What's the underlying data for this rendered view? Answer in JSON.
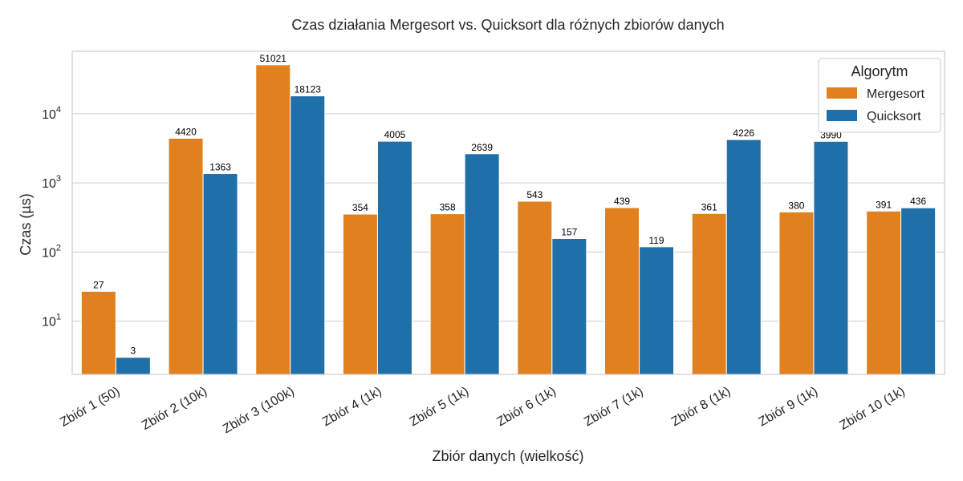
{
  "chart_data": {
    "type": "bar",
    "title": "Czas działania Mergesort vs. Quicksort dla różnych zbiorów danych",
    "xlabel": "Zbiór danych (wielkość)",
    "ylabel": "Czas (µs)",
    "yscale": "log",
    "ylim": [
      1.7,
      80000
    ],
    "y_ticks": [
      10,
      100,
      1000,
      10000
    ],
    "y_tick_labels": [
      "10",
      "10",
      "10",
      "10"
    ],
    "y_tick_exponents": [
      "1",
      "2",
      "3",
      "4"
    ],
    "grid": "horizontal",
    "legend": {
      "title": "Algorytm",
      "placement": "top-right"
    },
    "categories": [
      "Zbiór 1 (50)",
      "Zbiór 2 (10k)",
      "Zbiór 3 (100k)",
      "Zbiór 4 (1k)",
      "Zbiór 5 (1k)",
      "Zbiór 6 (1k)",
      "Zbiór 7 (1k)",
      "Zbiór 8 (1k)",
      "Zbiór 9 (1k)",
      "Zbiór 10 (1k)"
    ],
    "series": [
      {
        "name": "Mergesort",
        "color": "#e1801e",
        "values": [
          27,
          4420,
          51021,
          354,
          358,
          543,
          439,
          361,
          380,
          391
        ]
      },
      {
        "name": "Quicksort",
        "color": "#1f6fa8",
        "values": [
          3,
          1363,
          18123,
          4005,
          2639,
          157,
          119,
          4226,
          3990,
          436
        ]
      }
    ]
  }
}
